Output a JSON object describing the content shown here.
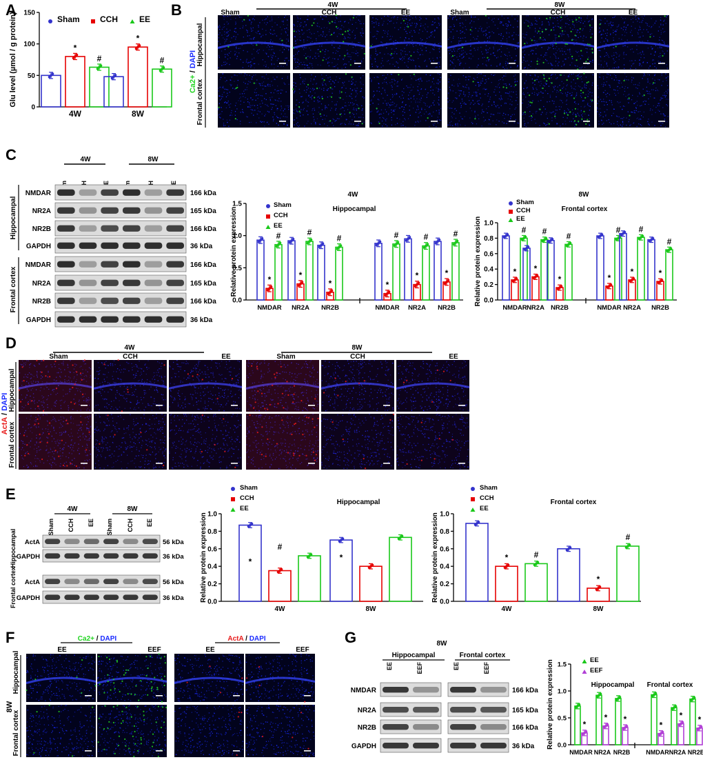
{
  "figure": {
    "panel_letters": [
      "A",
      "B",
      "C",
      "D",
      "E",
      "F",
      "G"
    ],
    "colors": {
      "sham": "#3333cc",
      "cch": "#e60000",
      "ee": "#19c819",
      "eef": "#b13fd6",
      "blue_dapi": "#1a2bff",
      "red_acta": "#e81a1a",
      "green_ca": "#22d422",
      "black": "#000000"
    }
  },
  "panelA": {
    "chart_data": {
      "type": "bar",
      "categories": [
        "4W",
        "8W"
      ],
      "series": [
        {
          "name": "Sham",
          "values": [
            50,
            48
          ]
        },
        {
          "name": "CCH",
          "values": [
            80,
            95
          ]
        },
        {
          "name": "EE",
          "values": [
            63,
            60
          ]
        }
      ],
      "ylabel": "Glu level (µmol / g protein)",
      "ylim": [
        0,
        150
      ],
      "yticks": [
        "0",
        "50",
        "100",
        "150"
      ],
      "annotations": [
        {
          "series": "CCH",
          "mark": "*"
        },
        {
          "series": "EE",
          "mark": "#"
        }
      ]
    }
  },
  "panelB": {
    "groups": [
      "4W",
      "8W"
    ],
    "conditions": [
      "Sham",
      "CCH",
      "EE"
    ],
    "rows": [
      "Hippocampal",
      "Frontal cortex"
    ],
    "stain_label_ca": "Ca2+",
    "stain_label_sep": " / ",
    "stain_label_dapi": "DAPI"
  },
  "panelC": {
    "blot_groups": [
      "4W",
      "8W"
    ],
    "lanes": [
      "Sham",
      "CCH",
      "EE",
      "Sham",
      "CCH",
      "EE"
    ],
    "regions": [
      "Hippocampal",
      "Frontal cortex"
    ],
    "bands": [
      {
        "name": "NMDAR",
        "kda": "166 kDa"
      },
      {
        "name": "NR2A",
        "kda": "165 kDa"
      },
      {
        "name": "NR2B",
        "kda": "166 kDa"
      },
      {
        "name": "GAPDH",
        "kda": "36 kDa"
      }
    ],
    "chart_data": [
      {
        "type": "bar",
        "title": "4W",
        "subtitle": "Hippocampal",
        "ylabel": "Relative protein expression",
        "ylim": [
          0,
          1.5
        ],
        "yticks": [
          "0.0",
          "0.5",
          "1.0",
          "1.5"
        ],
        "categories": [
          "NMDAR",
          "NR2A",
          "NR2B",
          "NMDAR",
          "NR2A",
          "NR2B"
        ],
        "legend": [
          "Sham",
          "CCH",
          "EE"
        ],
        "series": [
          {
            "name": "Sham",
            "values": [
              0.93,
              0.92,
              0.85,
              0.88,
              0.95,
              0.91
            ]
          },
          {
            "name": "CCH",
            "values": [
              0.18,
              0.25,
              0.12,
              0.1,
              0.24,
              0.28
            ]
          },
          {
            "name": "EE",
            "values": [
              0.86,
              0.91,
              0.82,
              0.87,
              0.84,
              0.89
            ]
          }
        ]
      },
      {
        "type": "bar",
        "title": "8W",
        "subtitle": "Frontal cortex",
        "ylabel": "Relative protein expression",
        "ylim": [
          0,
          1.0
        ],
        "yticks": [
          "0.0",
          "0.2",
          "0.4",
          "0.6",
          "0.8",
          "1.0"
        ],
        "categories": [
          "NMDAR",
          "NR2A",
          "NR2B",
          "NMDAR",
          "NR2A",
          "NR2B"
        ],
        "legend": [
          "Sham",
          "CCH",
          "EE"
        ],
        "series": [
          {
            "name": "Sham",
            "values": [
              0.83,
              0.67,
              0.77,
              0.83,
              0.86,
              0.78
            ]
          },
          {
            "name": "CCH",
            "values": [
              0.26,
              0.3,
              0.16,
              0.18,
              0.26,
              0.24
            ]
          },
          {
            "name": "EE",
            "values": [
              0.8,
              0.78,
              0.72,
              0.8,
              0.81,
              0.65
            ]
          }
        ]
      }
    ]
  },
  "panelD": {
    "groups": [
      "4W",
      "8W"
    ],
    "conditions": [
      "Sham",
      "CCH",
      "EE"
    ],
    "rows": [
      "Hippocampal",
      "Frontal cortex"
    ],
    "stain_label_acta": "ActA",
    "stain_label_sep": " / ",
    "stain_label_dapi": "DAPI"
  },
  "panelE": {
    "blot_groups": [
      "4W",
      "8W"
    ],
    "lanes": [
      "Sham",
      "CCH",
      "EE",
      "Sham",
      "CCH",
      "EE"
    ],
    "regions": [
      "Hippocampal",
      "Frontal cortex"
    ],
    "bands": [
      {
        "name": "ActA",
        "kda": "56 kDa"
      },
      {
        "name": "GAPDH",
        "kda": "36 kDa"
      }
    ],
    "chart_data": [
      {
        "type": "bar",
        "subtitle": "Hippocampal",
        "ylabel": "Relative protein expression",
        "ylim": [
          0,
          1.0
        ],
        "yticks": [
          "0.0",
          "0.2",
          "0.4",
          "0.6",
          "0.8",
          "1.0"
        ],
        "categories": [
          "4W",
          "8W"
        ],
        "legend": [
          "Sham",
          "CCH",
          "EE"
        ],
        "series": [
          {
            "name": "Sham",
            "values": [
              0.87,
              0.7
            ]
          },
          {
            "name": "CCH",
            "values": [
              0.35,
              0.4
            ]
          },
          {
            "name": "EE",
            "values": [
              0.52,
              0.73
            ]
          }
        ]
      },
      {
        "type": "bar",
        "subtitle": "Frontal cortex",
        "ylabel": "Relative protein expression",
        "ylim": [
          0,
          1.0
        ],
        "yticks": [
          "0.0",
          "0.2",
          "0.4",
          "0.6",
          "0.8",
          "1.0"
        ],
        "categories": [
          "4W",
          "8W"
        ],
        "legend": [
          "Sham",
          "CCH",
          "EE"
        ],
        "series": [
          {
            "name": "Sham",
            "values": [
              0.89,
              0.6
            ]
          },
          {
            "name": "CCH",
            "values": [
              0.4,
              0.15
            ]
          },
          {
            "name": "EE",
            "values": [
              0.43,
              0.63
            ]
          }
        ]
      }
    ]
  },
  "panelF": {
    "time_label": "8W",
    "conditions": [
      "EE",
      "EEF"
    ],
    "rows": [
      "Hippocampal",
      "Frontal cortex"
    ],
    "stain_label_ca": "Ca2+",
    "stain_label_acta": "ActA",
    "stain_label_sep": " / ",
    "stain_label_dapi": "DAPI"
  },
  "panelG": {
    "title": "8W",
    "regions": [
      "Hippocampal",
      "Frontal cortex"
    ],
    "lanes": [
      "EE",
      "EEF"
    ],
    "bands": [
      {
        "name": "NMDAR",
        "kda": "166 kDa"
      },
      {
        "name": "NR2A",
        "kda": "165 kDa"
      },
      {
        "name": "NR2B",
        "kda": "166 kDa"
      },
      {
        "name": "GAPDH",
        "kda": "36 kDa"
      }
    ],
    "chart_data": {
      "type": "bar",
      "ylabel": "Relative protein expression",
      "ylim": [
        0,
        1.5
      ],
      "yticks": [
        "0.0",
        "0.5",
        "1.0",
        "1.5"
      ],
      "categories": [
        "NMDAR",
        "NR2A",
        "NR2B",
        "NMDAR",
        "NR2A",
        "NR2B"
      ],
      "group_labels": [
        "Hippocampal",
        "Frontal cortex"
      ],
      "legend": [
        "EE",
        "EEF"
      ],
      "series": [
        {
          "name": "EE",
          "values": [
            0.72,
            0.92,
            0.86,
            0.93,
            0.69,
            0.85
          ]
        },
        {
          "name": "EEF",
          "values": [
            0.22,
            0.35,
            0.32,
            0.21,
            0.39,
            0.31
          ]
        }
      ]
    }
  }
}
